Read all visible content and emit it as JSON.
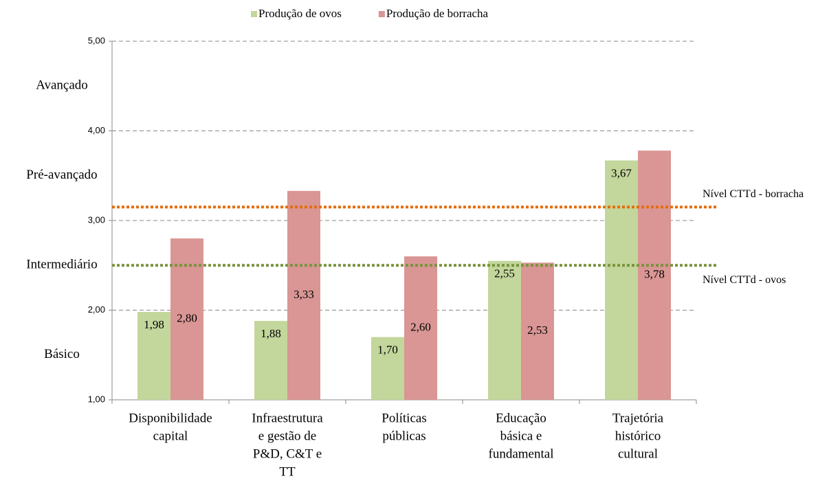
{
  "chart_data": {
    "type": "bar",
    "categories": [
      [
        "Disponibilidade",
        "capital"
      ],
      [
        "Infraestrutura",
        "e gestão de",
        "P&D, C&T e",
        "TT"
      ],
      [
        "Políticas",
        "públicas"
      ],
      [
        "Educação",
        "básica e",
        "fundamental"
      ],
      [
        "Trajetória",
        "histórico",
        "cultural"
      ]
    ],
    "series": [
      {
        "name": "Produção de ovos",
        "color": "#c3d69b",
        "values": [
          1.98,
          1.88,
          1.7,
          2.55,
          3.67
        ],
        "value_labels": [
          "1,98",
          "1,88",
          "1,70",
          "2,55",
          "3,67"
        ]
      },
      {
        "name": "Produção de borracha",
        "color": "#d99694",
        "values": [
          2.8,
          3.33,
          2.6,
          2.53,
          3.78
        ],
        "value_labels": [
          "2,80",
          "3,33",
          "2,60",
          "2,53",
          "3,78"
        ]
      }
    ],
    "ylim": [
      1,
      5
    ],
    "yticks": [
      {
        "value": 1,
        "label": "1,00"
      },
      {
        "value": 2,
        "label": "2,00"
      },
      {
        "value": 3,
        "label": "3,00"
      },
      {
        "value": 4,
        "label": "4,00"
      },
      {
        "value": 5,
        "label": "5,00"
      }
    ],
    "grid": true,
    "legend": "top",
    "level_labels": [
      {
        "label": "Avançado",
        "value": 4.5
      },
      {
        "label": "Pré-avançado",
        "value": 3.5
      },
      {
        "label": "Intermediário",
        "value": 2.5
      },
      {
        "label": "Básico",
        "value": 1.5
      }
    ],
    "reference_lines": [
      {
        "label": "Nível CTTd - borracha",
        "value": 3.15,
        "color": "#e46c0a"
      },
      {
        "label": "Nível CTTd - ovos",
        "value": 2.5,
        "color": "#77933c"
      }
    ]
  }
}
